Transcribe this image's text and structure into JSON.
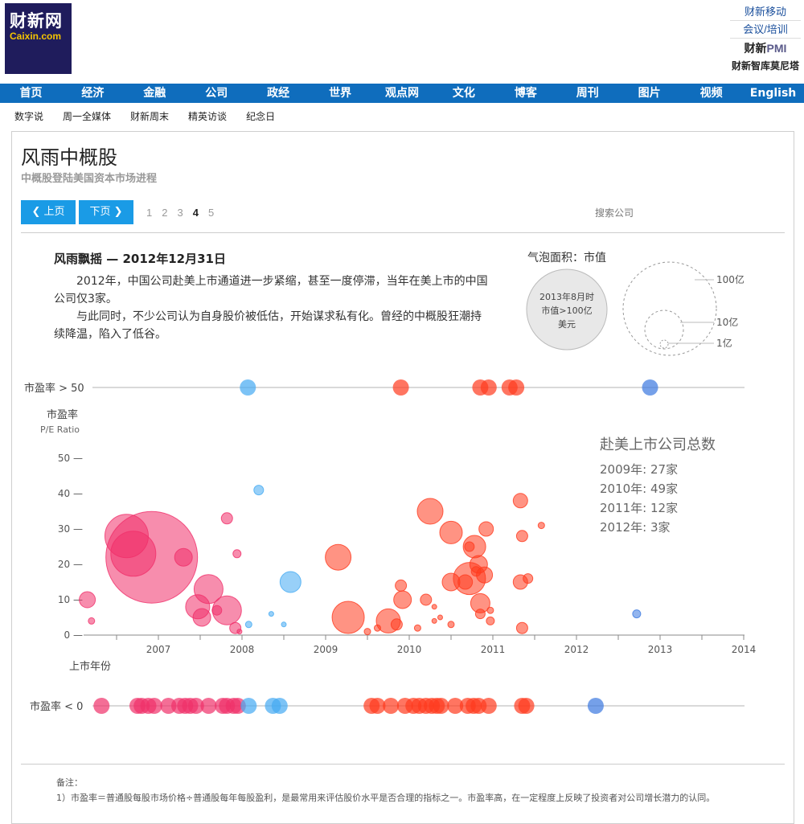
{
  "header": {
    "logo_cn": "财新网",
    "logo_en": "Caixin.com",
    "links": [
      "财新移动",
      "会议/培训"
    ],
    "pmi_a": "财新",
    "pmi_b": "PMI",
    "think_tank": "财新智库莫尼塔"
  },
  "nav": [
    "首页",
    "经济",
    "金融",
    "公司",
    "政经",
    "世界",
    "观点网",
    "文化",
    "博客",
    "周刊",
    "图片",
    "视频",
    "English"
  ],
  "subnav": [
    "数字说",
    "周一全媒体",
    "财新周末",
    "精英访谈",
    "纪念日"
  ],
  "page": {
    "title": "风雨中概股",
    "subtitle": "中概股登陆美国资本市场进程",
    "prev_label": "上页",
    "next_label": "下页",
    "pages": [
      "1",
      "2",
      "3",
      "4",
      "5"
    ],
    "current_page": "4",
    "search_label": "搜索公司"
  },
  "story": {
    "heading": "风雨飘摇 — 2012年12月31日",
    "para1": "2012年，中国公司赴美上市通道进一步紧缩，甚至一度停滞，当年在美上市的中国公司仅3家。",
    "para2": "与此同时，不少公司认为自身股价被低估，开始谋求私有化。曾经的中概股狂潮持续降温，陷入了低谷。"
  },
  "bubble_legend": {
    "title": "气泡面积：市值",
    "gray_bubble": [
      "2013年8月时",
      "市值>100亿",
      "美元"
    ],
    "sizes": [
      "100亿",
      "10亿",
      "1亿"
    ]
  },
  "totals": {
    "title": "赴美上市公司总数",
    "items": [
      "2009年: 27家",
      "2010年: 49家",
      "2011年: 12家",
      "2012年: 3家"
    ]
  },
  "notes": {
    "label": "备注：",
    "line1": "1）市盈率＝普通股每股市场价格÷普通股每年每股盈利，是最常用来评估股价水平是否合理的指标之一。市盈率高，在一定程度上反映了投资者对公司增长潜力的认同。"
  },
  "colors": {
    "pink": "#f0306a",
    "red": "#ff3a1e",
    "blue": "#44aaf2",
    "darkblue": "#3a78e0",
    "nav": "#0f6dbd"
  },
  "chart_data": {
    "type": "scatter",
    "title": "",
    "xlabel": "上市年份",
    "ylabel": "市盈率",
    "ylabel_en": "P/E Ratio",
    "xlim": [
      2006,
      2014
    ],
    "ylim": [
      0,
      50
    ],
    "x_ticks": [
      "2007",
      "2008",
      "2009",
      "2010",
      "2011",
      "2012",
      "2013",
      "2014"
    ],
    "y_ticks": [
      "0",
      "10",
      "20",
      "30",
      "40",
      "50"
    ],
    "y_tick_suffix": " —",
    "row_high_label": "市盈率 > 50",
    "row_low_label": "市盈率 < 0",
    "series": [
      {
        "color": "pink",
        "points": [
          [
            2006.15,
            10,
            10
          ],
          [
            2006.2,
            4,
            4
          ],
          [
            2006.62,
            28,
            27
          ],
          [
            2006.7,
            23,
            28
          ],
          [
            2006.92,
            22,
            57
          ],
          [
            2007.3,
            22,
            11
          ],
          [
            2007.47,
            8,
            15
          ],
          [
            2007.52,
            5,
            11
          ],
          [
            2007.6,
            13,
            18
          ],
          [
            2007.7,
            7,
            6
          ],
          [
            2007.82,
            7,
            18
          ],
          [
            2007.82,
            33,
            7
          ],
          [
            2007.92,
            2,
            7
          ],
          [
            2007.94,
            23,
            5
          ],
          [
            2007.97,
            1,
            3
          ]
        ]
      },
      {
        "color": "red",
        "points": [
          [
            2009.15,
            22,
            16
          ],
          [
            2009.27,
            5,
            20
          ],
          [
            2009.5,
            1,
            4
          ],
          [
            2009.62,
            2,
            4
          ],
          [
            2009.75,
            4,
            15
          ],
          [
            2009.85,
            3,
            7
          ],
          [
            2009.9,
            14,
            7
          ],
          [
            2009.92,
            10,
            11
          ],
          [
            2010.1,
            2,
            4
          ],
          [
            2010.2,
            10,
            7
          ],
          [
            2010.25,
            35,
            16
          ],
          [
            2010.3,
            8,
            3
          ],
          [
            2010.3,
            4,
            3
          ],
          [
            2010.37,
            5,
            3
          ],
          [
            2010.5,
            29,
            14
          ],
          [
            2010.5,
            3,
            4
          ],
          [
            2010.5,
            15,
            11
          ],
          [
            2010.67,
            15,
            9
          ],
          [
            2010.72,
            16,
            20
          ],
          [
            2010.72,
            25,
            6
          ],
          [
            2010.78,
            25,
            14
          ],
          [
            2010.8,
            18,
            6
          ],
          [
            2010.83,
            20,
            11
          ],
          [
            2010.85,
            9,
            12
          ],
          [
            2010.85,
            6,
            6
          ],
          [
            2010.9,
            17,
            10
          ],
          [
            2010.92,
            30,
            9
          ],
          [
            2010.97,
            7,
            4
          ],
          [
            2010.97,
            4,
            5
          ],
          [
            2011.33,
            38,
            9
          ],
          [
            2011.33,
            15,
            9
          ],
          [
            2011.35,
            28,
            7
          ],
          [
            2011.35,
            2,
            7
          ],
          [
            2011.42,
            16,
            6
          ],
          [
            2011.58,
            31,
            4
          ]
        ]
      },
      {
        "color": "blue",
        "points": [
          [
            2008.2,
            41,
            6
          ],
          [
            2008.08,
            3,
            4
          ],
          [
            2008.35,
            6,
            3
          ],
          [
            2008.5,
            3,
            3
          ],
          [
            2008.58,
            15,
            13
          ]
        ]
      },
      {
        "color": "darkblue",
        "points": [
          [
            2012.72,
            6,
            5
          ]
        ]
      }
    ],
    "high_row": [
      {
        "x": 2008.07,
        "color": "blue"
      },
      {
        "x": 2009.9,
        "color": "red"
      },
      {
        "x": 2010.85,
        "color": "red"
      },
      {
        "x": 2010.95,
        "color": "red"
      },
      {
        "x": 2011.2,
        "color": "red"
      },
      {
        "x": 2011.28,
        "color": "red"
      },
      {
        "x": 2012.88,
        "color": "darkblue"
      }
    ],
    "low_row": [
      {
        "x": 2006.32,
        "color": "pink"
      },
      {
        "x": 2006.75,
        "color": "pink"
      },
      {
        "x": 2006.8,
        "color": "pink"
      },
      {
        "x": 2006.88,
        "color": "pink"
      },
      {
        "x": 2006.95,
        "color": "pink"
      },
      {
        "x": 2007.12,
        "color": "pink"
      },
      {
        "x": 2007.25,
        "color": "pink"
      },
      {
        "x": 2007.32,
        "color": "pink"
      },
      {
        "x": 2007.38,
        "color": "pink"
      },
      {
        "x": 2007.45,
        "color": "pink"
      },
      {
        "x": 2007.6,
        "color": "pink"
      },
      {
        "x": 2007.77,
        "color": "pink"
      },
      {
        "x": 2007.82,
        "color": "pink"
      },
      {
        "x": 2007.9,
        "color": "pink"
      },
      {
        "x": 2007.95,
        "color": "pink"
      },
      {
        "x": 2008.08,
        "color": "blue"
      },
      {
        "x": 2008.37,
        "color": "blue"
      },
      {
        "x": 2008.45,
        "color": "blue"
      },
      {
        "x": 2009.55,
        "color": "red"
      },
      {
        "x": 2009.62,
        "color": "red"
      },
      {
        "x": 2009.78,
        "color": "red"
      },
      {
        "x": 2009.95,
        "color": "red"
      },
      {
        "x": 2010.05,
        "color": "red"
      },
      {
        "x": 2010.12,
        "color": "red"
      },
      {
        "x": 2010.2,
        "color": "red"
      },
      {
        "x": 2010.27,
        "color": "red"
      },
      {
        "x": 2010.33,
        "color": "red"
      },
      {
        "x": 2010.38,
        "color": "red"
      },
      {
        "x": 2010.55,
        "color": "red"
      },
      {
        "x": 2010.7,
        "color": "red"
      },
      {
        "x": 2010.77,
        "color": "red"
      },
      {
        "x": 2010.83,
        "color": "red"
      },
      {
        "x": 2010.95,
        "color": "red"
      },
      {
        "x": 2011.35,
        "color": "red"
      },
      {
        "x": 2011.4,
        "color": "red"
      },
      {
        "x": 2012.23,
        "color": "darkblue"
      }
    ]
  }
}
